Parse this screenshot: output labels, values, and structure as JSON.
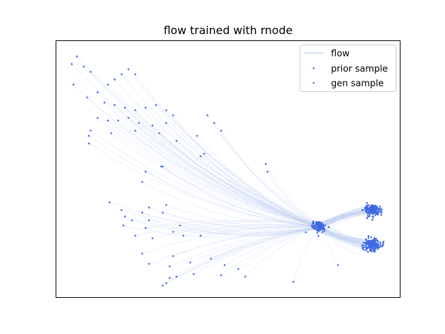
{
  "chart_data": {
    "type": "scatter",
    "title": "flow trained with rnode",
    "xlabel": "",
    "ylabel": "",
    "xlim": [
      0,
      10
    ],
    "ylim": [
      0,
      10
    ],
    "ticks_visible": false,
    "grid": false,
    "legend_position": "top-right",
    "colors": {
      "series": "#4169e1",
      "flow_line": "#c7d3f4"
    },
    "legend": [
      "flow",
      "prior sample",
      "gen sample"
    ],
    "series": [
      {
        "name": "prior sample",
        "kind": "cluster",
        "center": [
          7.65,
          2.75
        ],
        "spread": 0.09,
        "count": 130
      },
      {
        "name": "gen sample",
        "kind": "clusters",
        "clusters": [
          {
            "center": [
              9.2,
              3.4
            ],
            "spread": 0.12,
            "count": 170
          },
          {
            "center": [
              9.2,
              2.05
            ],
            "spread": 0.12,
            "count": 170
          }
        ]
      },
      {
        "name": "flow",
        "kind": "trajectory_endpoints",
        "points": [
          [
            0.6,
            9.4
          ],
          [
            0.45,
            9.1
          ],
          [
            0.8,
            9.0
          ],
          [
            1.0,
            8.8
          ],
          [
            0.5,
            8.3
          ],
          [
            0.9,
            7.8
          ],
          [
            1.2,
            8.0
          ],
          [
            1.5,
            8.3
          ],
          [
            1.7,
            8.5
          ],
          [
            1.9,
            8.7
          ],
          [
            2.1,
            8.9
          ],
          [
            2.3,
            8.7
          ],
          [
            1.4,
            7.6
          ],
          [
            1.7,
            7.5
          ],
          [
            2.0,
            7.4
          ],
          [
            2.3,
            7.3
          ],
          [
            2.6,
            7.4
          ],
          [
            2.9,
            7.5
          ],
          [
            3.2,
            7.3
          ],
          [
            3.4,
            7.1
          ],
          [
            1.2,
            7.0
          ],
          [
            1.5,
            6.9
          ],
          [
            1.8,
            6.9
          ],
          [
            2.1,
            7.0
          ],
          [
            2.4,
            6.8
          ],
          [
            2.8,
            6.7
          ],
          [
            3.2,
            6.8
          ],
          [
            1.0,
            6.5
          ],
          [
            1.6,
            6.4
          ],
          [
            2.3,
            6.5
          ],
          [
            3.0,
            6.4
          ],
          [
            3.5,
            6.1
          ],
          [
            0.95,
            6.3
          ],
          [
            0.95,
            6.0
          ],
          [
            4.4,
            7.1
          ],
          [
            4.6,
            6.8
          ],
          [
            4.8,
            6.5
          ],
          [
            4.1,
            6.3
          ],
          [
            4.3,
            5.6
          ],
          [
            4.2,
            5.5
          ],
          [
            3.1,
            5.1
          ],
          [
            3.05,
            5.1
          ],
          [
            2.6,
            4.9
          ],
          [
            2.5,
            4.5
          ],
          [
            6.1,
            5.2
          ],
          [
            6.15,
            4.9
          ],
          [
            1.55,
            3.7
          ],
          [
            1.9,
            3.4
          ],
          [
            2.0,
            3.15
          ],
          [
            1.95,
            2.8
          ],
          [
            2.2,
            3.0
          ],
          [
            2.5,
            3.3
          ],
          [
            2.7,
            3.5
          ],
          [
            3.1,
            3.3
          ],
          [
            3.2,
            3.6
          ],
          [
            2.7,
            3.0
          ],
          [
            2.6,
            2.7
          ],
          [
            2.8,
            2.3
          ],
          [
            3.4,
            2.55
          ],
          [
            3.6,
            2.8
          ],
          [
            4.2,
            2.4
          ],
          [
            3.7,
            2.4
          ],
          [
            2.3,
            2.4
          ],
          [
            2.5,
            1.7
          ],
          [
            3.4,
            1.6
          ],
          [
            3.9,
            1.35
          ],
          [
            4.5,
            1.5
          ],
          [
            4.9,
            1.25
          ],
          [
            5.3,
            1.1
          ],
          [
            5.5,
            0.8
          ],
          [
            4.8,
            0.85
          ],
          [
            4.0,
            0.9
          ],
          [
            3.5,
            0.8
          ],
          [
            3.3,
            0.75
          ],
          [
            3.2,
            0.55
          ],
          [
            3.1,
            0.45
          ],
          [
            3.3,
            1.2
          ],
          [
            2.7,
            1.3
          ],
          [
            6.9,
            0.6
          ],
          [
            8.2,
            1.25
          ]
        ]
      }
    ]
  }
}
